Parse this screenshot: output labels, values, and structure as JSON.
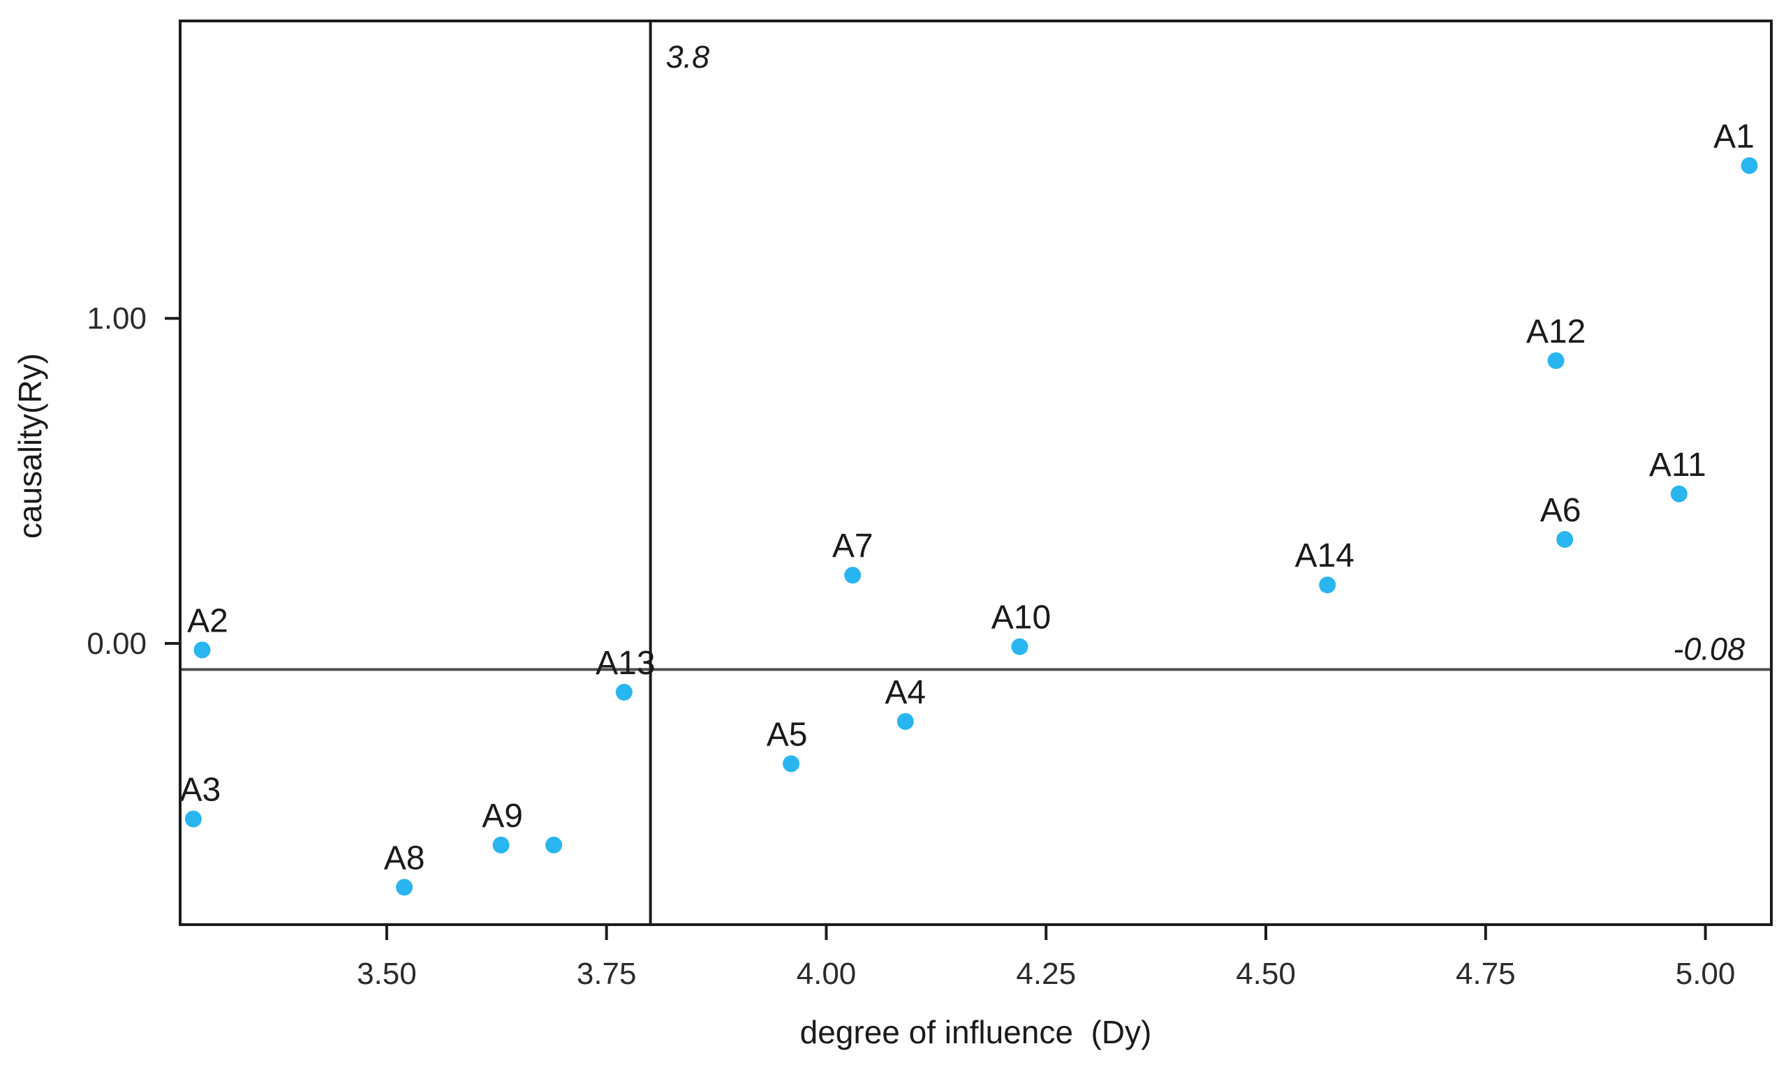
{
  "chart_data": {
    "type": "scatter",
    "title": "",
    "xlabel": "degree of influence  (Dy)",
    "ylabel": "causality(Ry)",
    "xlim": [
      3.265,
      5.075
    ],
    "ylim": [
      -0.865,
      1.915
    ],
    "grid": false,
    "x_ticks": [
      {
        "value": 3.5,
        "label": "3.50"
      },
      {
        "value": 3.75,
        "label": "3.75"
      },
      {
        "value": 4.0,
        "label": "4.00"
      },
      {
        "value": 4.25,
        "label": "4.25"
      },
      {
        "value": 4.5,
        "label": "4.50"
      },
      {
        "value": 4.75,
        "label": "4.75"
      },
      {
        "value": 5.0,
        "label": "5.00"
      }
    ],
    "y_ticks": [
      {
        "value": 0.0,
        "label": "0.00"
      },
      {
        "value": 1.0,
        "label": "1.00"
      }
    ],
    "points": [
      {
        "label": "A1",
        "x": 5.05,
        "y": 1.47,
        "label_dx": -22
      },
      {
        "label": "A2",
        "x": 3.29,
        "y": -0.02,
        "label_dx": 8
      },
      {
        "label": "A3",
        "x": 3.28,
        "y": -0.54,
        "label_dx": 10
      },
      {
        "label": "A4",
        "x": 4.09,
        "y": -0.24,
        "label_dx": 0
      },
      {
        "label": "A5",
        "x": 3.96,
        "y": -0.37,
        "label_dx": -6
      },
      {
        "label": "A6",
        "x": 4.84,
        "y": 0.32,
        "label_dx": -6
      },
      {
        "label": "A7",
        "x": 4.03,
        "y": 0.21,
        "label_dx": 0
      },
      {
        "label": "A8",
        "x": 3.52,
        "y": -0.75,
        "label_dx": 0
      },
      {
        "label": "A9",
        "x": 3.63,
        "y": -0.62,
        "label_dx": 2
      },
      {
        "label": "",
        "x": 3.69,
        "y": -0.62,
        "label_dx": 0
      },
      {
        "label": "A10",
        "x": 4.22,
        "y": -0.01,
        "label_dx": 2
      },
      {
        "label": "A11",
        "x": 4.97,
        "y": 0.46,
        "label_dx": -2
      },
      {
        "label": "A12",
        "x": 4.83,
        "y": 0.87,
        "label_dx": 0
      },
      {
        "label": "A13",
        "x": 3.77,
        "y": -0.15,
        "label_dx": 2
      },
      {
        "label": "A14",
        "x": 4.57,
        "y": 0.18,
        "label_dx": -4
      }
    ],
    "reference_lines": {
      "vertical": {
        "value": 3.8,
        "label": "3.8"
      },
      "horizontal": {
        "value": -0.08,
        "label": "-0.08"
      }
    },
    "colors": {
      "point": "#29b5f0",
      "border": "#1c1c1c",
      "vline": "#1c1c1c",
      "hline": "#4f4f4f",
      "tick": "#1c1c1c",
      "text": "#1a1a1a",
      "tick_text": "#2b2b2b"
    }
  }
}
